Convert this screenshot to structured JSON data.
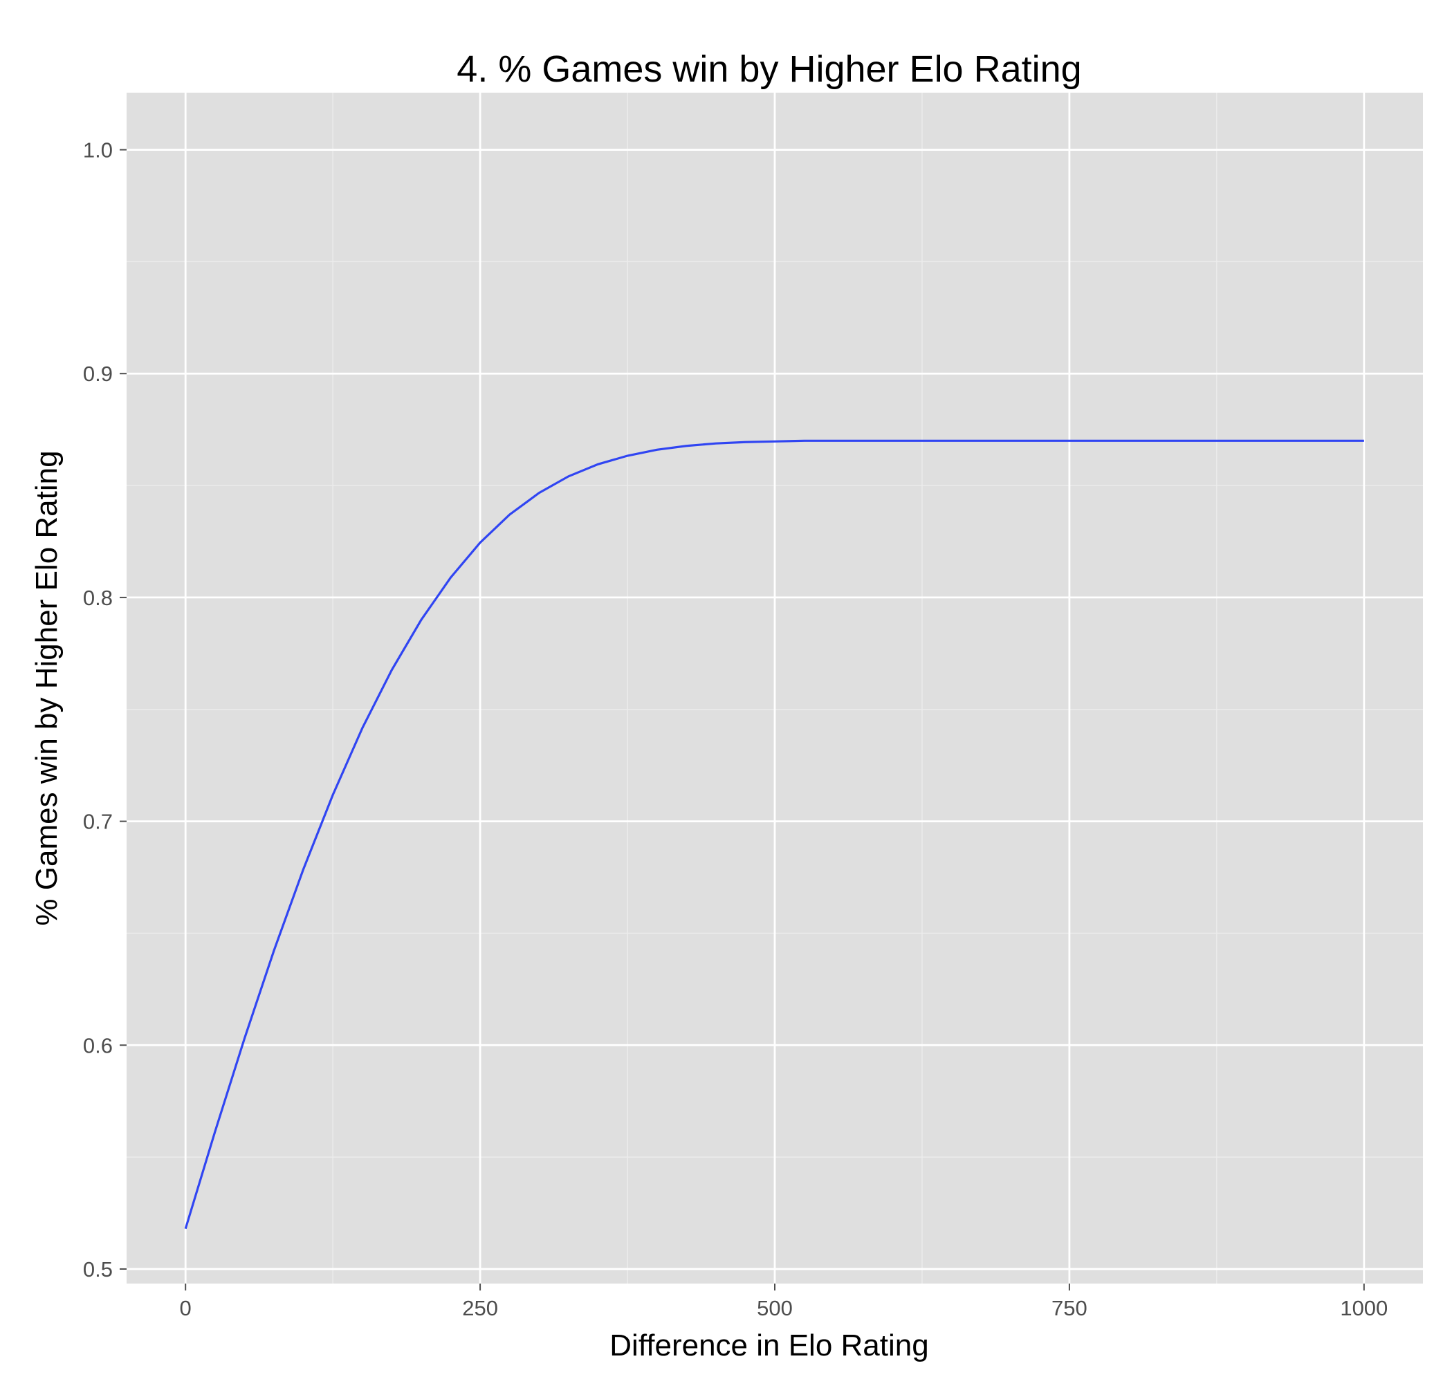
{
  "chart_data": {
    "type": "line",
    "title": "4. % Games win by Higher Elo Rating",
    "xlabel": "Difference in Elo Rating",
    "ylabel": "% Games win by Higher Elo Rating",
    "xlim": [
      -50,
      1050
    ],
    "ylim": [
      0.4935,
      1.0255
    ],
    "x_ticks": [
      0,
      250,
      500,
      750,
      1000
    ],
    "x_tick_labels": [
      "0",
      "250",
      "500",
      "750",
      "1000"
    ],
    "y_ticks": [
      0.5,
      0.6,
      0.7,
      0.8,
      0.9,
      1.0
    ],
    "y_tick_labels": [
      "0.5",
      "0.6",
      "0.7",
      "0.8",
      "0.9",
      "1.0"
    ],
    "grid": true,
    "legend": "none",
    "colors": {
      "panel": "#dfdfdf",
      "grid_major": "#ffffff",
      "grid_minor": "#ececec",
      "line": "#3045f2",
      "tick": "#4d4d4d"
    },
    "series": [
      {
        "x": [
          0,
          25,
          50,
          75,
          100,
          125,
          150,
          175,
          200,
          225,
          250,
          275,
          300,
          325,
          350,
          375,
          400,
          425,
          450,
          475,
          500,
          525,
          550,
          575,
          600,
          625,
          650,
          675,
          700,
          725,
          750,
          775,
          800,
          825,
          850,
          875,
          900,
          925,
          950,
          975,
          1000
        ],
        "values": [
          0.518,
          0.5613,
          0.6029,
          0.6422,
          0.6786,
          0.7118,
          0.7416,
          0.7676,
          0.79,
          0.8089,
          0.8245,
          0.837,
          0.8467,
          0.8541,
          0.8595,
          0.8633,
          0.866,
          0.8677,
          0.8688,
          0.8694,
          0.8697,
          0.87,
          0.87,
          0.87,
          0.87,
          0.87,
          0.87,
          0.87,
          0.87,
          0.87,
          0.87,
          0.87,
          0.87,
          0.87,
          0.87,
          0.87,
          0.87,
          0.87,
          0.87,
          0.87,
          0.87
        ]
      }
    ]
  }
}
